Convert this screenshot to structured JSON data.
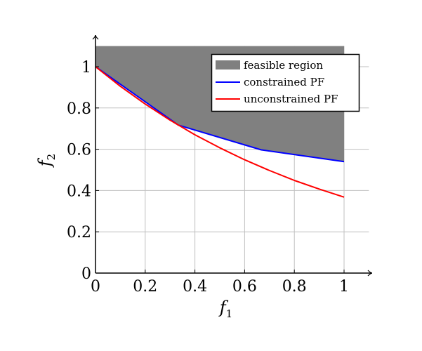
{
  "chart_data": {
    "type": "area",
    "title": "",
    "xlabel": {
      "main": "f",
      "sub": "1"
    },
    "ylabel": {
      "main": "f",
      "sub": "2"
    },
    "xlim": [
      0,
      1.1
    ],
    "ylim": [
      0,
      1.1
    ],
    "x_ticks": [
      "0",
      "0.2",
      "0.4",
      "0.6",
      "0.8",
      "1"
    ],
    "y_ticks": [
      "0",
      "0.2",
      "0.4",
      "0.6",
      "0.8",
      "1"
    ],
    "grid": true,
    "legend_position": "top-right",
    "series": [
      {
        "name": "feasible region",
        "kind": "area",
        "color": "#808080",
        "upper": 1.1,
        "x": [
          0,
          0.333,
          0.667,
          1.0
        ],
        "y": [
          1.0,
          0.717,
          0.597,
          0.54
        ]
      },
      {
        "name": "constrained PF",
        "kind": "line",
        "color": "#0000ff",
        "x": [
          0,
          0.333,
          0.667,
          1.0
        ],
        "y": [
          1.0,
          0.717,
          0.597,
          0.54
        ]
      },
      {
        "name": "unconstrained PF",
        "kind": "line",
        "color": "#ff0000",
        "x": [
          0,
          0.1,
          0.2,
          0.3,
          0.4,
          0.5,
          0.6,
          0.7,
          0.8,
          0.9,
          1.0
        ],
        "y": [
          1.0,
          0.905,
          0.819,
          0.741,
          0.67,
          0.607,
          0.549,
          0.497,
          0.449,
          0.407,
          0.368
        ]
      }
    ]
  }
}
